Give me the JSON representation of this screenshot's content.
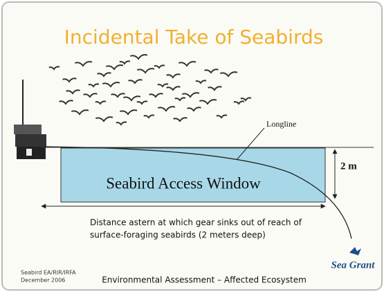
{
  "slide": {
    "title": "Incidental Take of Seabirds",
    "labels": {
      "longline": "Longline",
      "depth": "2 m",
      "window": "Seabird Access Window"
    },
    "caption": [
      "Distance astern at which gear sinks out of reach of",
      "surface-foraging seabirds (2 meters deep)"
    ],
    "footer": {
      "left": [
        "Seabird EA/RIR/IRFA",
        "December 2006"
      ],
      "center": "Environmental Assessment – Affected Ecosystem",
      "logo": "Sea Grant"
    }
  }
}
